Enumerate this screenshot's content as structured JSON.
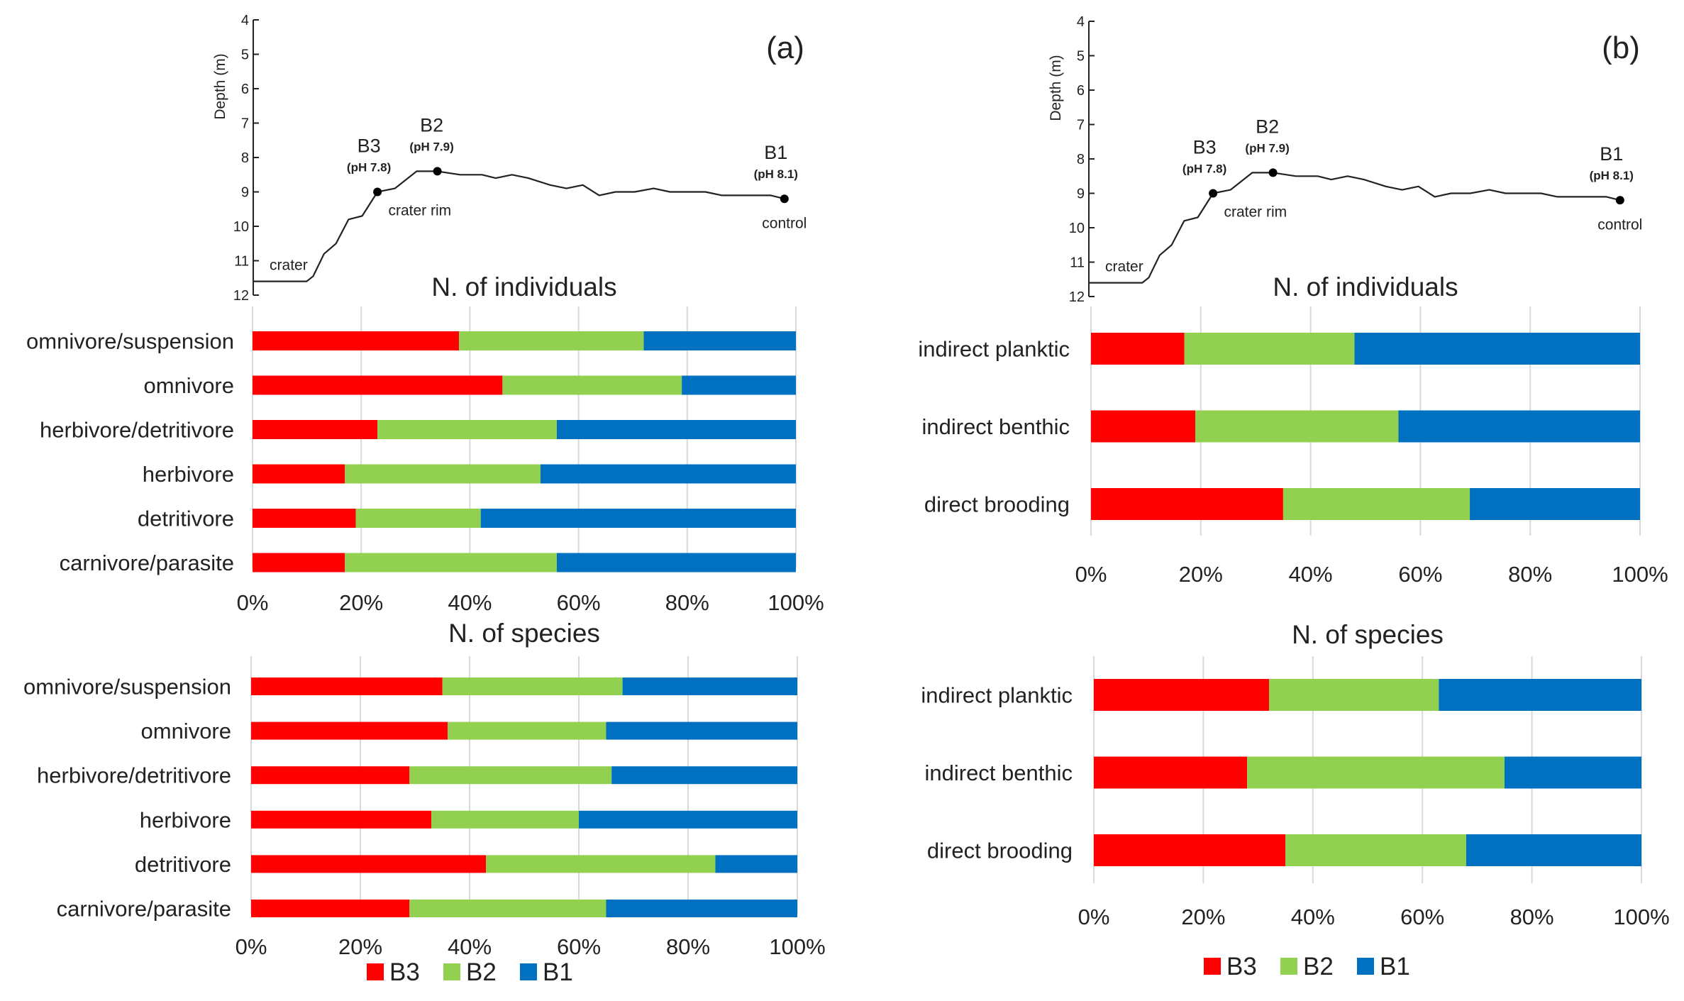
{
  "colors": {
    "B3": "#ff0000",
    "B2": "#92d050",
    "B1": "#0070c0"
  },
  "legend": [
    "B3",
    "B2",
    "B1"
  ],
  "profile": {
    "ylabel": "Depth (m)",
    "depth_ticks": [
      "4",
      "5",
      "6",
      "7",
      "8",
      "9",
      "10",
      "11",
      "12"
    ],
    "sites": [
      {
        "name": "B3",
        "ph": "(pH 7.8)"
      },
      {
        "name": "B2",
        "ph": "(pH 7.9)"
      },
      {
        "name": "B1",
        "ph": "(pH 8.1)"
      }
    ],
    "labels": {
      "crater": "crater",
      "rim": "crater rim",
      "control": "control"
    },
    "panels": [
      "(a)",
      "(b)"
    ]
  },
  "chart_data": [
    {
      "panel": "(a)",
      "type": "bar",
      "stacked": "percent",
      "orientation": "horizontal",
      "title": "N. of individuals",
      "categories": [
        "omnivore/suspension",
        "omnivore",
        "herbivore/detritivore",
        "herbivore",
        "detritivore",
        "carnivore/parasite"
      ],
      "series": [
        {
          "name": "B3",
          "values": [
            38,
            46,
            23,
            17,
            19,
            17
          ]
        },
        {
          "name": "B2",
          "values": [
            34,
            33,
            33,
            36,
            23,
            39
          ]
        },
        {
          "name": "B1",
          "values": [
            28,
            21,
            44,
            47,
            58,
            44
          ]
        }
      ],
      "xticks": [
        "0%",
        "20%",
        "40%",
        "60%",
        "80%",
        "100%"
      ],
      "xlim": [
        0,
        100
      ]
    },
    {
      "panel": "(a)",
      "type": "bar",
      "stacked": "percent",
      "orientation": "horizontal",
      "title": "N. of species",
      "categories": [
        "omnivore/suspension",
        "omnivore",
        "herbivore/detritivore",
        "herbivore",
        "detritivore",
        "carnivore/parasite"
      ],
      "series": [
        {
          "name": "B3",
          "values": [
            35,
            36,
            29,
            33,
            43,
            29
          ]
        },
        {
          "name": "B2",
          "values": [
            33,
            29,
            37,
            27,
            42,
            36
          ]
        },
        {
          "name": "B1",
          "values": [
            32,
            35,
            34,
            40,
            15,
            35
          ]
        }
      ],
      "xticks": [
        "0%",
        "20%",
        "40%",
        "60%",
        "80%",
        "100%"
      ],
      "xlim": [
        0,
        100
      ]
    },
    {
      "panel": "(b)",
      "type": "bar",
      "stacked": "percent",
      "orientation": "horizontal",
      "title": "N. of individuals",
      "categories": [
        "indirect planktic",
        "indirect benthic",
        "direct brooding"
      ],
      "series": [
        {
          "name": "B3",
          "values": [
            17,
            19,
            35
          ]
        },
        {
          "name": "B2",
          "values": [
            31,
            37,
            34
          ]
        },
        {
          "name": "B1",
          "values": [
            52,
            44,
            31
          ]
        }
      ],
      "xticks": [
        "0%",
        "20%",
        "40%",
        "60%",
        "80%",
        "100%"
      ],
      "xlim": [
        0,
        100
      ]
    },
    {
      "panel": "(b)",
      "type": "bar",
      "stacked": "percent",
      "orientation": "horizontal",
      "title": "N. of species",
      "categories": [
        "indirect planktic",
        "indirect benthic",
        "direct brooding"
      ],
      "series": [
        {
          "name": "B3",
          "values": [
            32,
            28,
            35
          ]
        },
        {
          "name": "B2",
          "values": [
            31,
            47,
            33
          ]
        },
        {
          "name": "B1",
          "values": [
            37,
            25,
            32
          ]
        }
      ],
      "xticks": [
        "0%",
        "20%",
        "40%",
        "60%",
        "80%",
        "100%"
      ],
      "xlim": [
        0,
        100
      ]
    }
  ]
}
